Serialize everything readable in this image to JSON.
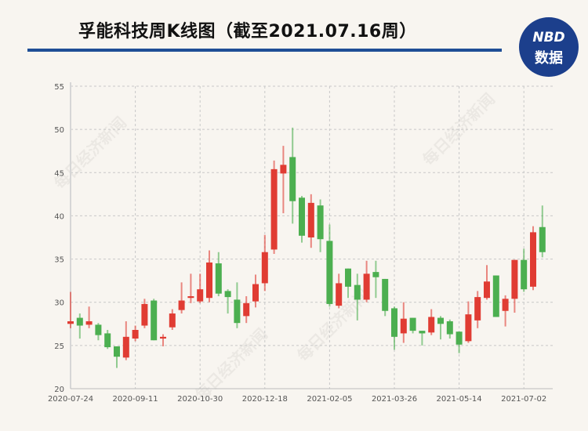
{
  "header": {
    "title": "孚能科技周K线图（截至2021.07.16周）"
  },
  "logo": {
    "line1": "NBD",
    "line2": "数据",
    "color": "#1c3f8c"
  },
  "watermark": "每日经济新闻",
  "chart_data": {
    "type": "candlestick",
    "title": "孚能科技周K线图（截至2021.07.16周）",
    "xlabel": "",
    "ylabel": "",
    "ylim": [
      20,
      55
    ],
    "yticks": [
      20,
      25,
      30,
      35,
      40,
      45,
      50,
      55
    ],
    "xtick_labels": [
      "2020-07-24",
      "2020-09-11",
      "2020-10-30",
      "2020-12-18",
      "2021-02-05",
      "2021-03-26",
      "2021-05-14",
      "2021-07-02"
    ],
    "grid": true,
    "colors": {
      "up": "#e03c33",
      "down": "#4caf50"
    },
    "categories": [
      "2020-07-24",
      "2020-07-31",
      "2020-08-07",
      "2020-08-14",
      "2020-08-21",
      "2020-08-28",
      "2020-09-04",
      "2020-09-11",
      "2020-09-18",
      "2020-09-25",
      "2020-10-02",
      "2020-10-09",
      "2020-10-16",
      "2020-10-23",
      "2020-10-30",
      "2020-11-06",
      "2020-11-13",
      "2020-11-20",
      "2020-11-27",
      "2020-12-04",
      "2020-12-11",
      "2020-12-18",
      "2020-12-25",
      "2021-01-01",
      "2021-01-08",
      "2021-01-15",
      "2021-01-22",
      "2021-01-29",
      "2021-02-05",
      "2021-02-12",
      "2021-02-19",
      "2021-02-26",
      "2021-03-05",
      "2021-03-12",
      "2021-03-19",
      "2021-03-26",
      "2021-04-02",
      "2021-04-09",
      "2021-04-16",
      "2021-04-23",
      "2021-04-30",
      "2021-05-07",
      "2021-05-14",
      "2021-05-21",
      "2021-05-28",
      "2021-06-04",
      "2021-06-11",
      "2021-06-18",
      "2021-06-25",
      "2021-07-02",
      "2021-07-09",
      "2021-07-16"
    ],
    "ohlc": [
      [
        27.5,
        31.2,
        27.0,
        27.8
      ],
      [
        28.2,
        28.7,
        25.8,
        27.3
      ],
      [
        27.4,
        29.5,
        27.0,
        27.8
      ],
      [
        27.4,
        27.6,
        25.6,
        26.2
      ],
      [
        26.4,
        26.8,
        24.6,
        24.8
      ],
      [
        24.9,
        24.9,
        22.4,
        23.7
      ],
      [
        23.6,
        27.8,
        23.3,
        26.0
      ],
      [
        25.8,
        27.3,
        25.5,
        26.8
      ],
      [
        27.3,
        30.4,
        27.0,
        29.8
      ],
      [
        30.2,
        30.4,
        25.6,
        25.6
      ],
      [
        25.8,
        26.3,
        24.9,
        26.0
      ],
      [
        27.1,
        29.2,
        26.8,
        28.7
      ],
      [
        29.1,
        32.3,
        28.7,
        30.2
      ],
      [
        30.5,
        33.3,
        29.9,
        30.7
      ],
      [
        30.1,
        33.3,
        29.9,
        31.5
      ],
      [
        30.5,
        36.0,
        30.0,
        34.6
      ],
      [
        34.5,
        35.8,
        30.7,
        31.0
      ],
      [
        31.3,
        31.5,
        28.7,
        30.6
      ],
      [
        30.3,
        32.3,
        27.0,
        27.6
      ],
      [
        28.4,
        30.7,
        27.6,
        29.9
      ],
      [
        30.1,
        33.2,
        29.4,
        32.1
      ],
      [
        32.2,
        37.8,
        31.3,
        35.8
      ],
      [
        36.1,
        46.4,
        35.6,
        45.4
      ],
      [
        44.9,
        48.1,
        40.3,
        45.9
      ],
      [
        46.8,
        50.2,
        39.1,
        41.7
      ],
      [
        42.1,
        42.3,
        36.9,
        37.7
      ],
      [
        37.5,
        42.5,
        36.3,
        41.5
      ],
      [
        41.2,
        41.9,
        35.8,
        37.3
      ],
      [
        37.1,
        39.0,
        29.5,
        29.8
      ],
      [
        29.6,
        33.3,
        29.3,
        32.2
      ],
      [
        33.9,
        33.9,
        30.5,
        31.8
      ],
      [
        32.0,
        33.3,
        27.9,
        30.3
      ],
      [
        30.3,
        34.8,
        30.0,
        33.3
      ],
      [
        33.5,
        34.8,
        30.5,
        32.9
      ],
      [
        32.7,
        32.7,
        28.4,
        29.0
      ],
      [
        29.3,
        29.5,
        24.5,
        26.0
      ],
      [
        26.4,
        30.0,
        25.3,
        28.1
      ],
      [
        28.2,
        28.2,
        26.4,
        26.7
      ],
      [
        26.7,
        26.7,
        25.0,
        26.4
      ],
      [
        26.5,
        29.2,
        26.2,
        28.3
      ],
      [
        28.2,
        28.4,
        25.7,
        27.5
      ],
      [
        27.8,
        28.0,
        25.8,
        26.3
      ],
      [
        26.6,
        26.6,
        24.1,
        25.1
      ],
      [
        25.5,
        30.1,
        25.3,
        28.6
      ],
      [
        27.9,
        31.3,
        27.0,
        30.6
      ],
      [
        30.5,
        34.3,
        30.3,
        32.4
      ],
      [
        33.1,
        33.1,
        28.3,
        28.3
      ],
      [
        29.0,
        30.8,
        27.2,
        30.4
      ],
      [
        30.4,
        34.9,
        28.8,
        34.9
      ],
      [
        34.9,
        36.2,
        31.2,
        31.5
      ],
      [
        31.8,
        38.8,
        31.4,
        38.1
      ],
      [
        38.7,
        41.2,
        35.2,
        35.8
      ]
    ]
  }
}
